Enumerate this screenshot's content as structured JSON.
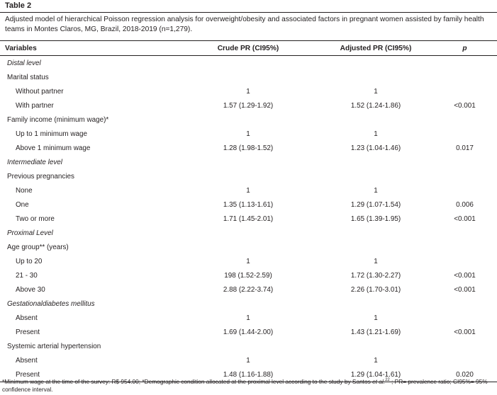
{
  "title": "Table 2",
  "caption": "Adjusted model of hierarchical Poisson regression analysis for overweight/obesity and associated factors in pregnant women assisted by family health teams in Montes Claros, MG, Brazil, 2018-2019 (n=1,279).",
  "columns": [
    "Variables",
    "Crude PR (CI95%)",
    "Adjusted PR (CI95%)",
    "p"
  ],
  "rows": [
    {
      "type": "lvl",
      "label": "Distal level"
    },
    {
      "type": "grp",
      "label": "Marital status"
    },
    {
      "type": "sub",
      "label": "Without partner",
      "crude": "1",
      "adjusted": "1",
      "p": ""
    },
    {
      "type": "sub",
      "label": "With partner",
      "crude": "1.57 (1.29-1.92)",
      "adjusted": "1.52 (1.24-1.86)",
      "p": "<0.001"
    },
    {
      "type": "grp",
      "label": "Family income (minimum wage)*"
    },
    {
      "type": "sub",
      "label": "Up to 1 minimum wage",
      "crude": "1",
      "adjusted": "1",
      "p": ""
    },
    {
      "type": "sub",
      "label": "Above 1 minimum wage",
      "crude": "1.28 (1.98-1.52)",
      "adjusted": "1.23 (1.04-1.46)",
      "p": "0.017"
    },
    {
      "type": "lvl",
      "label": "Intermediate level"
    },
    {
      "type": "grp",
      "label": "Previous pregnancies"
    },
    {
      "type": "sub",
      "label": "None",
      "crude": "1",
      "adjusted": "1",
      "p": ""
    },
    {
      "type": "sub",
      "label": "One",
      "crude": "1.35 (1.13-1.61)",
      "adjusted": "1.29 (1.07-1.54)",
      "p": "0.006"
    },
    {
      "type": "sub",
      "label": "Two or more",
      "crude": "1.71 (1.45-2.01)",
      "adjusted": "1.65 (1.39-1.95)",
      "p": "<0.001"
    },
    {
      "type": "lvl",
      "label": "Proximal Level"
    },
    {
      "type": "grp",
      "label": "Age group** (years)"
    },
    {
      "type": "sub",
      "label": "Up to 20",
      "crude": "1",
      "adjusted": "1",
      "p": ""
    },
    {
      "type": "sub",
      "label": "21 - 30",
      "crude": "198 (1.52-2.59)",
      "adjusted": "1.72 (1.30-2.27)",
      "p": "<0.001"
    },
    {
      "type": "sub",
      "label": "Above 30",
      "crude": "2.88 (2.22-3.74)",
      "adjusted": "2.26 (1.70-3.01)",
      "p": "<0.001"
    },
    {
      "type": "lvl",
      "label": "Gestationaldiabetes mellitus"
    },
    {
      "type": "sub",
      "label": "Absent",
      "crude": "1",
      "adjusted": "1",
      "p": ""
    },
    {
      "type": "sub",
      "label": "Present",
      "crude": "1.69 (1.44-2.00)",
      "adjusted": "1.43 (1.21-1.69)",
      "p": "<0.001"
    },
    {
      "type": "grp",
      "label": "Systemic arterial hypertension"
    },
    {
      "type": "sub",
      "label": "Absent",
      "crude": "1",
      "adjusted": "1",
      "p": ""
    },
    {
      "type": "sub",
      "label": "Present",
      "crude": "1.48 (1.16-1.88)",
      "adjusted": "1.29 (1.04-1.61)",
      "p": "0.020"
    }
  ],
  "footnote": {
    "part1": "*Minimum wage at the time of the survey: R$ 954.00; *Demographic condition allocated at the proximal level according to the study by Santos ",
    "etal": "et al.",
    "ref": "22",
    "part2": " ; PR= prevalence ratio; CI95%= 95% confidence interval."
  }
}
